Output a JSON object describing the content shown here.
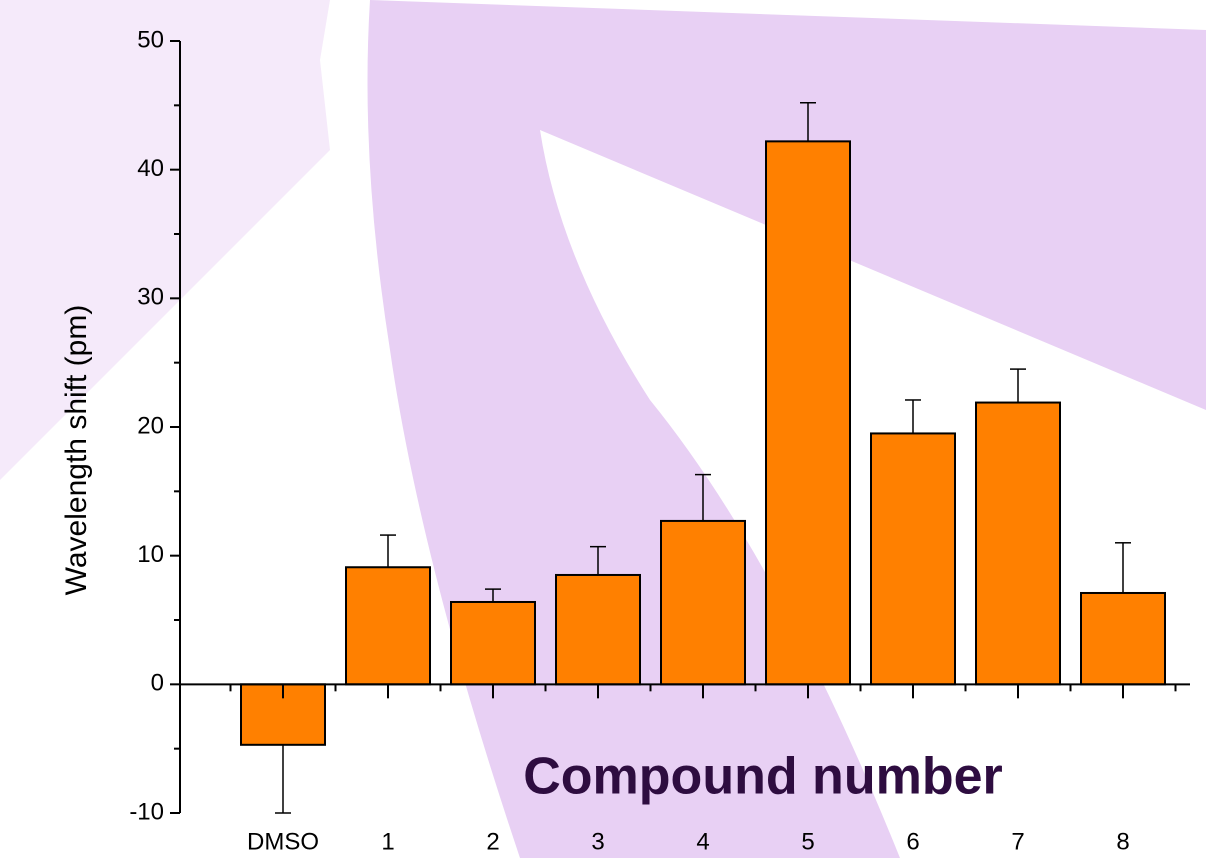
{
  "chart_data": {
    "type": "bar",
    "x_label": "Compound number",
    "y_label": "Wavelength shift (pm)",
    "categories": [
      "DMSO",
      "1",
      "2",
      "3",
      "4",
      "5",
      "6",
      "7",
      "8"
    ],
    "values": [
      -4.7,
      9.1,
      6.4,
      8.5,
      12.7,
      42.2,
      19.5,
      21.9,
      7.1
    ],
    "errors": [
      5.3,
      2.5,
      1.0,
      2.2,
      3.6,
      3.0,
      2.6,
      2.6,
      3.9
    ],
    "color": "#ff8000",
    "ylim": [
      -10,
      50
    ],
    "yticks": [
      -10,
      0,
      10,
      20,
      30,
      40,
      50
    ],
    "minor_yticks": [
      -5,
      5,
      15,
      25,
      35,
      45
    ]
  }
}
